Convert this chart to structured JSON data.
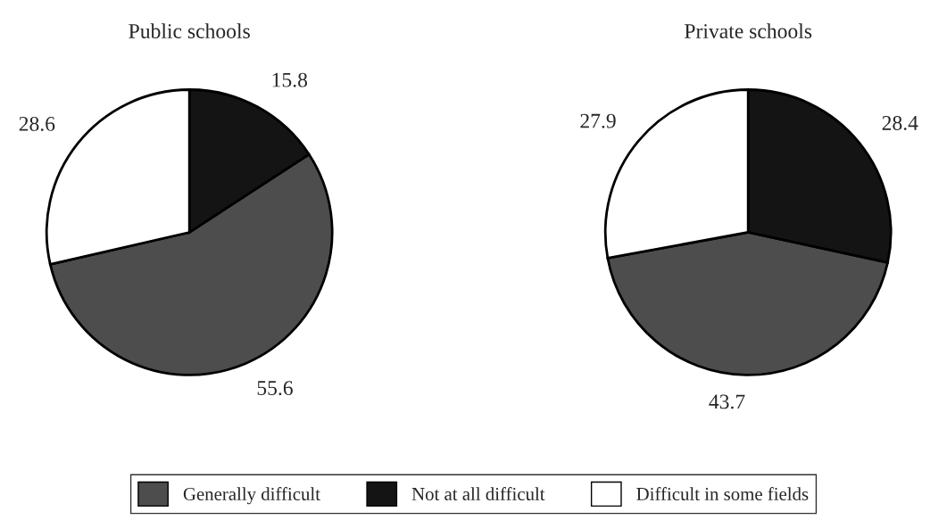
{
  "chart_data": [
    {
      "type": "pie",
      "title": "Public schools",
      "categories": [
        "Generally difficult",
        "Not at all difficult",
        "Difficult in some fields"
      ],
      "values": [
        55.6,
        15.8,
        28.6
      ],
      "colors": [
        "#4d4d4d",
        "#141414",
        "#ffffff"
      ],
      "data_labels": true,
      "legend": "bottom"
    },
    {
      "type": "pie",
      "title": "Private schools",
      "categories": [
        null,
        null,
        null
      ],
      "values": [
        43.7,
        28.4,
        27.9
      ],
      "colors": [
        "#4d4d4d",
        "#141414",
        "#ffffff"
      ],
      "data_labels": true,
      "legend": false
    }
  ]
}
